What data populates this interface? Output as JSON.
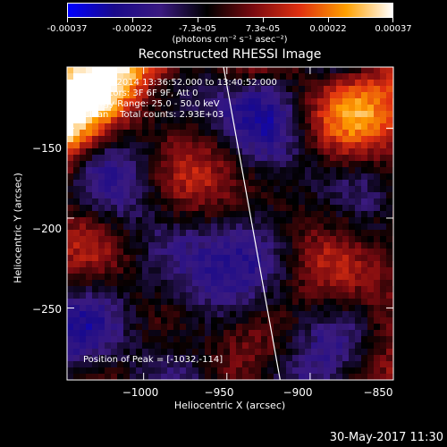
{
  "colorbar": {
    "labels": [
      "-0.00037",
      "-0.00022",
      "-7.3e-05",
      "7.3e-05",
      "0.00022",
      "0.00037"
    ],
    "units": "(photons cm⁻² s⁻¹ asec⁻²)",
    "range": [
      -0.00037,
      0.00037
    ]
  },
  "overlay": {
    "line1": "01-Oct-2014 13:36:52.000 to 13:40:52.000",
    "line2": "Detectors: 3F 6F 9F, Att 0",
    "line3": "Energy Range: 25.0 - 50.0 keV",
    "line4": "Clean    Total counts: 2.93E+03",
    "peak": "Position of Peak = [-1032,-114]"
  },
  "timestamp": "30-May-2017 11:30",
  "chart_data": {
    "type": "heatmap",
    "title": "Reconstructed RHESSI Image",
    "xlabel": "Heliocentric X (arcsec)",
    "ylabel": "Heliocentric Y (arcsec)",
    "xlim": [
      -1046,
      -850
    ],
    "ylim": [
      -290,
      -116
    ],
    "xticks": [
      -1000,
      -950,
      -900,
      -850
    ],
    "xtick_labels": [
      "−1000",
      "−950",
      "−900",
      "−850"
    ],
    "yticks": [
      -150,
      -200,
      -250
    ],
    "ytick_labels": [
      "−150",
      "−200",
      "−250"
    ],
    "limb_line": [
      [
        -952,
        -116
      ],
      [
        -918,
        -290
      ]
    ],
    "grid": false,
    "colormap": [
      "#0000ff",
      "#1a0a8a",
      "#3a1a80",
      "#000000",
      "#7a0a10",
      "#e03010",
      "#ffa000",
      "#ffffff"
    ]
  }
}
